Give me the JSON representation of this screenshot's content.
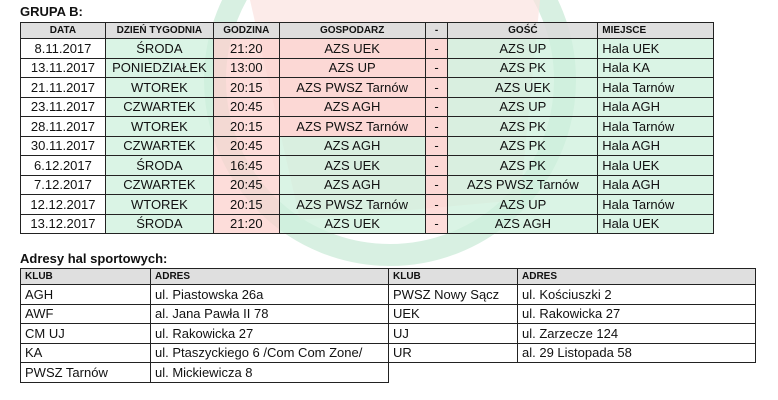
{
  "group_title": "GRUPA B:",
  "schedule": {
    "headers": [
      "DATA",
      "DZIEŃ TYGODNIA",
      "GODZINA",
      "GOSPODARZ",
      "-",
      "GOŚĆ",
      "MIEJSCE"
    ],
    "rows": [
      [
        "8.11.2017",
        "ŚRODA",
        "21:20",
        "AZS UEK",
        "-",
        "AZS UP",
        "Hala UEK"
      ],
      [
        "13.11.2017",
        "PONIEDZIAŁEK",
        "13:00",
        "AZS UP",
        "-",
        "AZS PK",
        "Hala KA"
      ],
      [
        "21.11.2017",
        "WTOREK",
        "20:15",
        "AZS PWSZ Tarnów",
        "-",
        "AZS UEK",
        "Hala Tarnów"
      ],
      [
        "23.11.2017",
        "CZWARTEK",
        "20:45",
        "AZS AGH",
        "-",
        "AZS UP",
        "Hala AGH"
      ],
      [
        "28.11.2017",
        "WTOREK",
        "20:15",
        "AZS PWSZ Tarnów",
        "-",
        "AZS PK",
        "Hala Tarnów"
      ],
      [
        "30.11.2017",
        "CZWARTEK",
        "20:45",
        "AZS AGH",
        "-",
        "AZS PK",
        "Hala AGH"
      ],
      [
        "6.12.2017",
        "ŚRODA",
        "16:45",
        "AZS UEK",
        "-",
        "AZS PK",
        "Hala UEK"
      ],
      [
        "7.12.2017",
        "CZWARTEK",
        "20:45",
        "AZS AGH",
        "-",
        "AZS PWSZ Tarnów",
        "Hala AGH"
      ],
      [
        "12.12.2017",
        "WTOREK",
        "20:15",
        "AZS PWSZ Tarnów",
        "-",
        "AZS UP",
        "Hala Tarnów"
      ],
      [
        "13.12.2017",
        "ŚRODA",
        "21:20",
        "AZS UEK",
        "-",
        "AZS AGH",
        "Hala UEK"
      ]
    ]
  },
  "addresses_title": "Adresy hal sportowych:",
  "addresses": {
    "headers": [
      "KLUB",
      "ADRES",
      "KLUB",
      "ADRES"
    ],
    "rows": [
      [
        "AGH",
        "ul. Piastowska 26a",
        "PWSZ Nowy Sącz",
        "ul. Kościuszki 2"
      ],
      [
        "AWF",
        "al. Jana Pawła II 78",
        "UEK",
        "ul. Rakowicka 27"
      ],
      [
        "CM UJ",
        "ul. Rakowicka 27",
        "UJ",
        "ul. Zarzecze 124"
      ],
      [
        "KA",
        "ul. Ptaszyckiego 6 /Com Com Zone/",
        "UR",
        "al. 29 Listopada 58"
      ],
      [
        "PWSZ Tarnów",
        "ul. Mickiewicza 8",
        "",
        ""
      ]
    ]
  },
  "colors": {
    "watermark_green": "#cdeedd",
    "watermark_red": "#f9cfcb"
  }
}
